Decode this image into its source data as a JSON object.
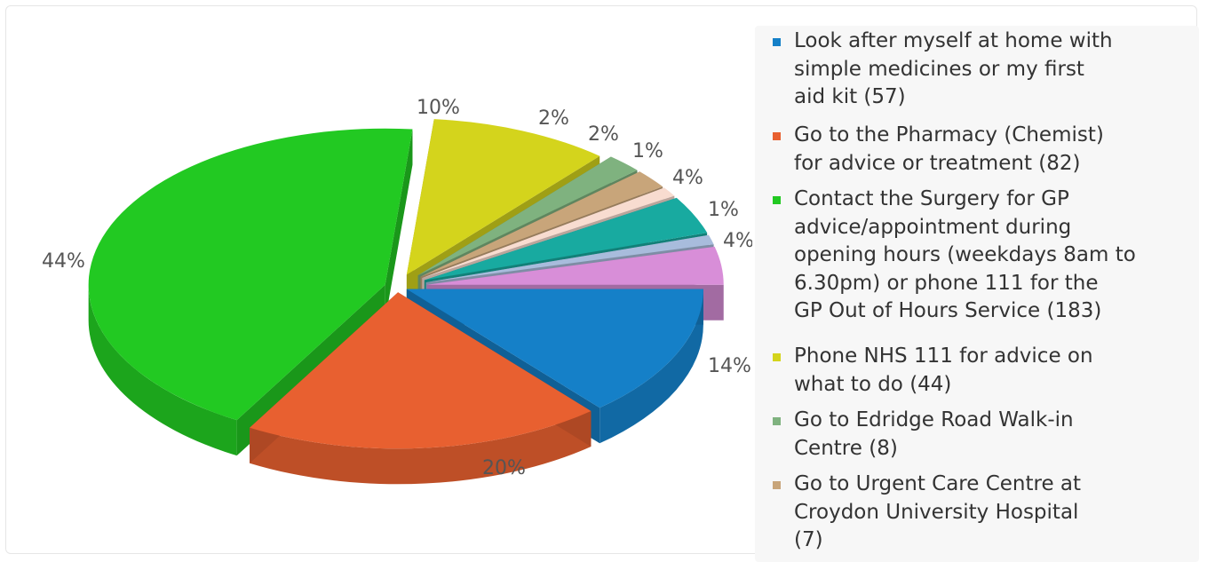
{
  "chart_data": {
    "type": "pie",
    "style": "3d-exploded",
    "legend_position": "right",
    "slices": [
      {
        "legend": "Look after myself at home with simple medicines or my first aid kit (57)",
        "legend_lines": "Look after myself at home with\nsimple medicines or my first\naid kit (57)",
        "count": 57,
        "percent_label": "14%",
        "color": "#1580c8"
      },
      {
        "legend": "Go to the Pharmacy (Chemist) for advice or treatment (82)",
        "legend_lines": "Go to the Pharmacy (Chemist)\nfor advice or treatment (82)",
        "count": 82,
        "percent_label": "20%",
        "color": "#e86030"
      },
      {
        "legend": "Contact the Surgery for GP advice/appointment during opening hours (weekdays 8am to 6.30pm) or phone 111 for the GP Out of Hours Service (183)",
        "legend_lines": "Contact the Surgery for GP\nadvice/appointment during\nopening hours (weekdays 8am to\n6.30pm) or phone 111 for the\nGP Out of Hours Service (183)",
        "count": 183,
        "percent_label": "44%",
        "color": "#22c922"
      },
      {
        "legend": "Phone NHS 111 for advice on what to do (44)",
        "legend_lines": "Phone NHS 111 for advice on\nwhat to do (44)",
        "count": 44,
        "percent_label": "10%",
        "color": "#d4d41c"
      },
      {
        "legend": "Go to Edridge Road Walk-in Centre (8)",
        "legend_lines": "Go to Edridge Road Walk-in\nCentre (8)",
        "count": 8,
        "percent_label": "2%",
        "color": "#7fb27f"
      },
      {
        "legend": "Go to Urgent Care Centre at Croydon University Hospital (7)",
        "legend_lines": "Go to Urgent Care Centre at\nCroydon University Hospital\n(7)",
        "count": 7,
        "percent_label": "2%",
        "color": "#c8a57a"
      },
      {
        "legend": "",
        "legend_lines": "",
        "count": null,
        "percent_label": "1%",
        "color": "#f8dcd0"
      },
      {
        "legend": "",
        "legend_lines": "",
        "count": null,
        "percent_label": "4%",
        "color": "#18aaa0"
      },
      {
        "legend": "",
        "legend_lines": "",
        "count": null,
        "percent_label": "1%",
        "color": "#a8bcdc"
      },
      {
        "legend": "",
        "legend_lines": "",
        "count": null,
        "percent_label": "4%",
        "color": "#d88ed8"
      }
    ]
  }
}
